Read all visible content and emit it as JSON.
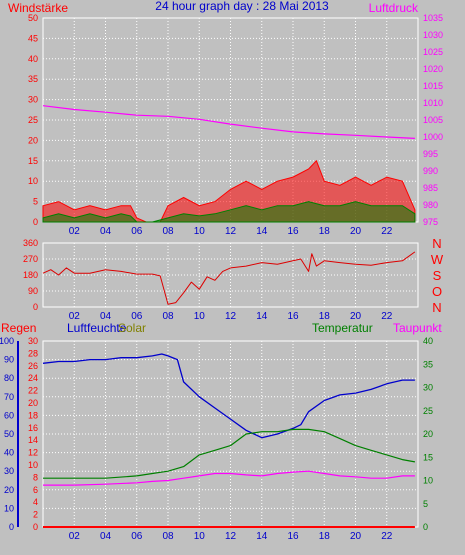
{
  "header": {
    "title": "24 hour graph day : 28 Mai 2013",
    "left_label": "Windstärke",
    "right_label": "Luftdruck"
  },
  "middle": {
    "direction_letters": [
      "N",
      "W",
      "S",
      "O",
      "N"
    ]
  },
  "bottom": {
    "labels": {
      "rain": "Regen",
      "humidity": "Luftfeuchte",
      "solar": "Solar",
      "temperature": "Temperatur",
      "dewpoint": "Taupunkt"
    }
  },
  "colors": {
    "background": "#c0c0c0",
    "grid": "#ffffff",
    "wind_gust": "#ff0000",
    "wind_avg": "#008000",
    "pressure": "#ff00ff",
    "wind_dir": "#dd0000",
    "humidity": "#0000cc",
    "solar": "#d8e6f6",
    "temperature": "#008000",
    "dewpoint": "#ff00ff",
    "rain": "#ff0000",
    "left_axis_red": "#ff0000",
    "left_axis_blue": "#0000cc",
    "right_axis_green": "#008000",
    "right_axis_magenta": "#ff00ff"
  },
  "chart_data": [
    {
      "id": "wind_pressure",
      "type": "line",
      "x_ticks": [
        "02",
        "04",
        "06",
        "08",
        "10",
        "12",
        "14",
        "16",
        "18",
        "20",
        "22"
      ],
      "xlim": [
        0,
        24
      ],
      "ylim_left": [
        0,
        50
      ],
      "yticks_left": [
        0,
        5,
        10,
        15,
        20,
        25,
        30,
        35,
        40,
        45,
        50
      ],
      "ylim_right": [
        975,
        1035
      ],
      "yticks_right": [
        975,
        980,
        985,
        990,
        995,
        1000,
        1005,
        1010,
        1015,
        1020,
        1025,
        1030,
        1035
      ],
      "series": [
        {
          "key": "gust",
          "x": [
            0,
            1,
            2,
            3,
            4,
            5,
            5.6,
            6,
            6.6,
            7,
            7.5,
            8,
            9,
            10,
            11,
            12,
            13,
            14,
            15,
            16,
            17,
            17.5,
            18,
            19,
            20,
            21,
            22,
            23,
            23.8
          ],
          "y": [
            4,
            5,
            3,
            4,
            3,
            4,
            4,
            1,
            0,
            0,
            0,
            4,
            6,
            4,
            5,
            8,
            10,
            8,
            10,
            11,
            13,
            15,
            10,
            9,
            11,
            9,
            11,
            10,
            3
          ]
        },
        {
          "key": "average",
          "x": [
            0,
            1,
            2,
            3,
            4,
            5,
            5.6,
            6,
            7,
            8,
            9,
            10,
            11,
            12,
            13,
            14,
            15,
            16,
            17,
            18,
            19,
            20,
            21,
            22,
            23,
            23.8
          ],
          "y": [
            1,
            2,
            1,
            2,
            1,
            2,
            1.5,
            0,
            0,
            1,
            2,
            1.5,
            2,
            3,
            4,
            3,
            4,
            4,
            5,
            4,
            4,
            5,
            4,
            4,
            4,
            2
          ]
        },
        {
          "key": "pressure",
          "x": [
            0,
            2,
            4,
            6,
            8,
            10,
            12,
            14,
            16,
            18,
            20,
            22,
            23.8
          ],
          "y": [
            1009.2,
            1008.1,
            1007.3,
            1006.4,
            1006.1,
            1005.2,
            1003.8,
            1002.6,
            1001.5,
            1000.9,
            1000.5,
            1000.0,
            999.6
          ]
        }
      ]
    },
    {
      "id": "wind_direction",
      "type": "line",
      "x_ticks": [
        "02",
        "04",
        "06",
        "08",
        "10",
        "12",
        "14",
        "16",
        "18",
        "20",
        "22"
      ],
      "xlim": [
        0,
        24
      ],
      "ylim": [
        0,
        360
      ],
      "yticks": [
        0,
        90,
        180,
        270,
        360
      ],
      "series": [
        {
          "key": "direction",
          "x": [
            0,
            0.5,
            1,
            1.5,
            2,
            3,
            4,
            5,
            6,
            7,
            7.5,
            8,
            8.5,
            9,
            9.5,
            10,
            10.5,
            11,
            11.5,
            12,
            13,
            14,
            15,
            16,
            16.5,
            17,
            17.2,
            17.5,
            18,
            19,
            20,
            21,
            22,
            23,
            23.8
          ],
          "y": [
            190,
            210,
            180,
            220,
            190,
            190,
            210,
            200,
            185,
            185,
            175,
            15,
            25,
            80,
            140,
            100,
            170,
            150,
            200,
            220,
            230,
            250,
            240,
            260,
            270,
            200,
            300,
            230,
            260,
            250,
            240,
            235,
            250,
            260,
            310
          ]
        }
      ]
    },
    {
      "id": "climate",
      "type": "line",
      "x_ticks": [
        "02",
        "04",
        "06",
        "08",
        "10",
        "12",
        "14",
        "16",
        "18",
        "20",
        "22"
      ],
      "xlim": [
        0,
        24
      ],
      "ylim_humidity": [
        0,
        100
      ],
      "yticks_humidity": [
        0,
        10,
        20,
        30,
        40,
        50,
        60,
        70,
        80,
        90,
        100
      ],
      "ylim_rain": [
        0,
        30
      ],
      "yticks_rain": [
        0,
        2,
        4,
        6,
        8,
        10,
        12,
        14,
        16,
        18,
        20,
        22,
        24,
        26,
        28,
        30
      ],
      "ylim_temp": [
        0,
        40
      ],
      "yticks_temp": [
        0,
        5,
        10,
        15,
        20,
        25,
        30,
        35,
        40
      ],
      "series": [
        {
          "key": "humidity",
          "x": [
            0,
            1,
            2,
            3,
            4,
            5,
            6,
            7,
            7.6,
            8,
            8.6,
            9,
            10,
            11,
            12,
            13,
            14,
            15,
            16,
            16.5,
            17,
            18,
            19,
            20,
            21,
            22,
            23,
            23.8
          ],
          "y": [
            88,
            89,
            89,
            90,
            90,
            91,
            91,
            92,
            93,
            92,
            90,
            78,
            70,
            64,
            58,
            52,
            48,
            50,
            53,
            55,
            62,
            68,
            71,
            72,
            74,
            77,
            79,
            79
          ]
        },
        {
          "key": "solar",
          "x": [
            0,
            1,
            2,
            3,
            4,
            5,
            6,
            7,
            8,
            9,
            10,
            11,
            12,
            13,
            14,
            15,
            16,
            17,
            18,
            19,
            20,
            21,
            22,
            23,
            23.8
          ],
          "y": [
            0,
            0,
            0,
            0,
            0,
            0,
            0,
            0,
            0,
            0,
            0,
            0,
            0,
            0,
            0,
            0,
            0,
            0,
            0,
            0,
            0,
            0,
            0,
            0,
            0
          ]
        },
        {
          "key": "temperature",
          "x": [
            0,
            2,
            4,
            6,
            7,
            8,
            9,
            10,
            11,
            12,
            13,
            14,
            15,
            16,
            17,
            18,
            19,
            20,
            21,
            22,
            23,
            23.8
          ],
          "y": [
            10.5,
            10.5,
            10.5,
            11,
            11.5,
            12,
            13,
            15.5,
            16.5,
            17.5,
            20,
            20.5,
            20.5,
            21,
            21,
            20.5,
            19,
            17.5,
            16.5,
            15.5,
            14.5,
            14
          ]
        },
        {
          "key": "dewpoint",
          "x": [
            0,
            2,
            4,
            6,
            7,
            8,
            9,
            10,
            11,
            12,
            13,
            14,
            15,
            16,
            17,
            18,
            19,
            20,
            21,
            22,
            23,
            23.8
          ],
          "y": [
            9,
            9,
            9.2,
            9.5,
            9.8,
            10,
            10.5,
            11,
            11.5,
            11.5,
            11.2,
            11,
            11.5,
            11.8,
            12,
            11.5,
            11,
            10.8,
            10.5,
            10.5,
            11,
            11
          ]
        },
        {
          "key": "rain",
          "x": [
            0,
            23.8
          ],
          "y": [
            0,
            0
          ]
        }
      ]
    }
  ]
}
